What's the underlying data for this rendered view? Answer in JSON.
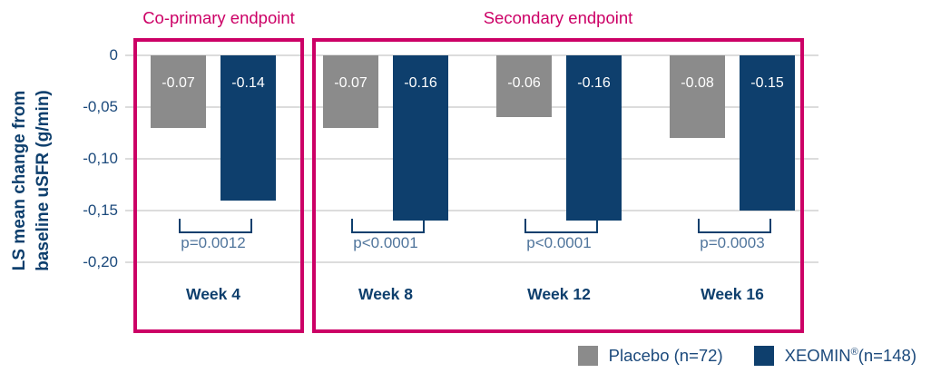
{
  "chart_data": {
    "type": "bar",
    "ylabel_line1": "LS mean change from",
    "ylabel_line2": "baseline uSFR (g/min)",
    "ylim": [
      -0.2,
      0
    ],
    "grid": true,
    "legend_position": "bottom-right",
    "yticks": [
      {
        "value": 0,
        "label": "0"
      },
      {
        "value": -0.05,
        "label": "-0,05"
      },
      {
        "value": -0.1,
        "label": "-0,10"
      },
      {
        "value": -0.15,
        "label": "-0,15"
      },
      {
        "value": -0.2,
        "label": "-0,20"
      }
    ],
    "categories": [
      "Week 4",
      "Week 8",
      "Week 12",
      "Week 16"
    ],
    "series": [
      {
        "name": "Placebo (n=72)",
        "color": "#8b8b8b",
        "values": [
          -0.07,
          -0.07,
          -0.06,
          -0.08
        ],
        "value_labels": [
          "-0.07",
          "-0.07",
          "-0.06",
          "-0.08"
        ]
      },
      {
        "name": "XEOMIN®(n=148)",
        "color": "#0e3f6d",
        "values": [
          -0.14,
          -0.16,
          -0.16,
          -0.15
        ],
        "value_labels": [
          "-0.14",
          "-0.16",
          "-0.16",
          "-0.15"
        ]
      }
    ],
    "p_values": [
      "p=0.0012",
      "p<0.0001",
      "p<0.0001",
      "p=0.0003"
    ],
    "annotations": {
      "co_primary": "Co-primary endpoint",
      "secondary": "Secondary endpoint"
    },
    "legend": [
      {
        "label": "Placebo (n=72)",
        "color": "#8b8b8b"
      },
      {
        "label": "XEOMIN®(n=148)",
        "color": "#0e3f6d"
      }
    ],
    "colors": {
      "accent_pink": "#cc0066",
      "navy": "#0e3f6d",
      "gray_bar": "#8b8b8b",
      "grid": "#dcdcdc",
      "p_text": "#50759c",
      "tick_text": "#1c4a7c",
      "bar_value_text": "#ffffff"
    }
  }
}
